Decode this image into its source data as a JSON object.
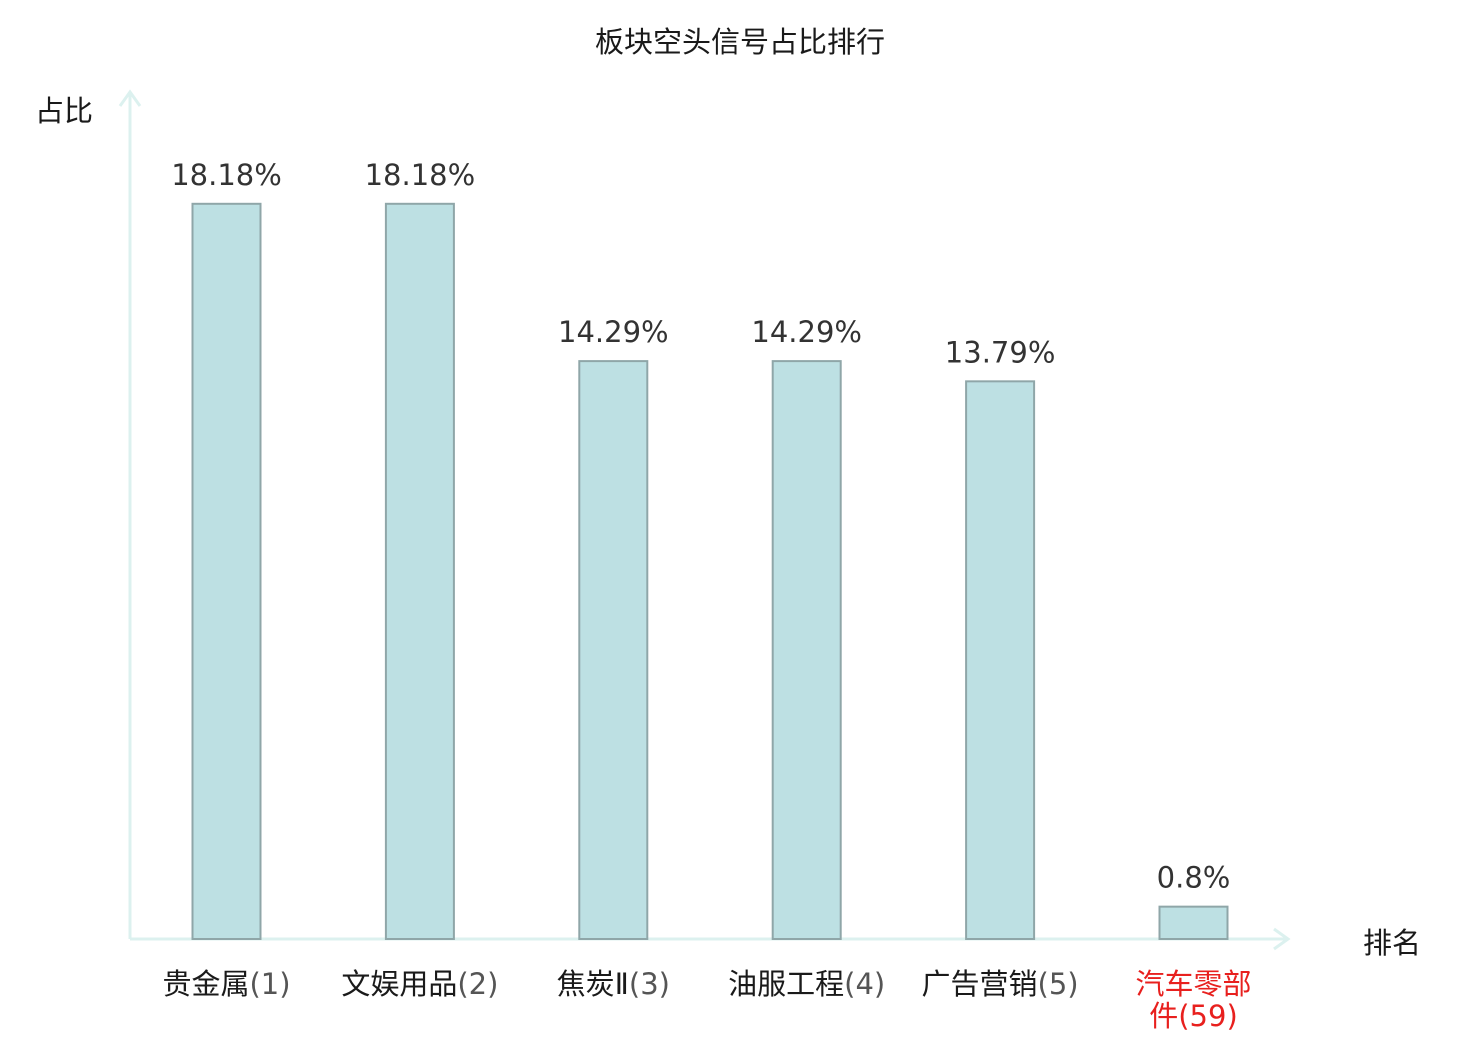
{
  "chart_data": {
    "type": "bar",
    "title": "板块空头信号占比排行",
    "ylabel": "占比",
    "xlabel": "排名",
    "categories": [
      {
        "name": "贵金属",
        "rank": "(1)",
        "highlight": false
      },
      {
        "name": "文娱用品",
        "rank": "(2)",
        "highlight": false
      },
      {
        "name": "焦炭Ⅱ",
        "rank": "(3)",
        "highlight": false
      },
      {
        "name": "油服工程",
        "rank": "(4)",
        "highlight": false
      },
      {
        "name": "广告营销",
        "rank": "(5)",
        "highlight": false
      },
      {
        "name": "汽车零部件",
        "rank": "(59)",
        "highlight": true
      }
    ],
    "values": [
      18.18,
      18.18,
      14.29,
      14.29,
      13.79,
      0.8
    ],
    "value_labels": [
      "18.18%",
      "18.18%",
      "14.29%",
      "14.29%",
      "13.79%",
      "0.8%"
    ],
    "ylim": [
      0,
      22
    ],
    "grid": false,
    "colors": {
      "bar_fill": "#bde0e3",
      "bar_stroke": "#8fa6a8",
      "axis": "#dcf1ef",
      "text": "#1a1a1a",
      "value_text": "#333333",
      "rank_text": "#555555",
      "highlight_text": "#e8201e"
    }
  }
}
